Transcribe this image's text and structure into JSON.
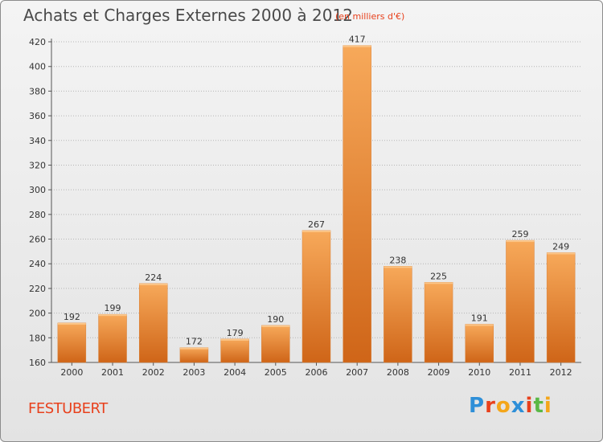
{
  "header": {
    "title": "Achats et Charges Externes 2000 à 2012",
    "subtitle": "(en milliers d'€)"
  },
  "footer": {
    "commune": "FESTUBERT",
    "logo_letters": [
      "P",
      "r",
      "o",
      "x",
      "i",
      "t",
      "i"
    ],
    "logo_colors": [
      "#2e8fd8",
      "#e8411d",
      "#f4a61a",
      "#2e8fd8",
      "#e8411d",
      "#59b846",
      "#f4a61a"
    ]
  },
  "colors": {
    "bar_light": "#f7a95a",
    "bar_dark": "#cf6518",
    "accent": "#e8411d"
  },
  "chart_data": {
    "type": "bar",
    "title": "Achats et Charges Externes 2000 à 2012",
    "xlabel": "",
    "ylabel": "",
    "categories": [
      "2000",
      "2001",
      "2002",
      "2003",
      "2004",
      "2005",
      "2006",
      "2007",
      "2008",
      "2009",
      "2010",
      "2011",
      "2012"
    ],
    "values": [
      192,
      199,
      224,
      172,
      179,
      190,
      267,
      417,
      238,
      225,
      191,
      259,
      249
    ],
    "ylim": [
      160,
      420
    ],
    "yticks": [
      160,
      180,
      200,
      220,
      240,
      260,
      280,
      300,
      320,
      340,
      360,
      380,
      400,
      420
    ],
    "grid": "horizontal-dotted",
    "legend": "none"
  }
}
